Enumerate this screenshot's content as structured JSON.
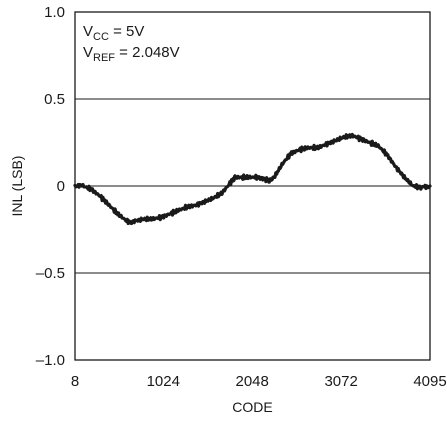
{
  "chart_data": {
    "type": "line",
    "xlabel": "CODE",
    "ylabel": "INL (LSB)",
    "xlim": [
      8,
      4095
    ],
    "ylim": [
      -1.0,
      1.0
    ],
    "x_ticks": [
      8,
      1024,
      2048,
      3072,
      4095
    ],
    "x_tick_labels": [
      "8",
      "1024",
      "2048",
      "3072",
      "4095"
    ],
    "y_ticks": [
      1.0,
      0.5,
      0,
      -0.5,
      -1.0
    ],
    "y_tick_labels": [
      "1.0",
      "0.5",
      "0",
      "–0.5",
      "–1.0"
    ],
    "grid": "horizontal",
    "line_color": "#1a1a1a",
    "annotations": [
      {
        "main": "V",
        "sub": "CC",
        "rest": " = 5V"
      },
      {
        "main": "V",
        "sub": "REF",
        "rest": " = 2.048V"
      }
    ],
    "series": [
      {
        "x": [
          8,
          100,
          200,
          300,
          400,
          500,
          600,
          650,
          700,
          800,
          900,
          1000,
          1100,
          1200,
          1300,
          1400,
          1500,
          1600,
          1700,
          1800,
          1850,
          1900,
          2000,
          2100,
          2200,
          2250,
          2300,
          2400,
          2500,
          2600,
          2700,
          2800,
          2900,
          3000,
          3100,
          3200,
          3300,
          3400,
          3500,
          3600,
          3700,
          3800,
          3900,
          4000,
          4095
        ],
        "y": [
          0.0,
          0.0,
          -0.02,
          -0.06,
          -0.11,
          -0.16,
          -0.2,
          -0.21,
          -0.2,
          -0.19,
          -0.19,
          -0.18,
          -0.16,
          -0.14,
          -0.12,
          -0.11,
          -0.09,
          -0.07,
          -0.04,
          0.02,
          0.05,
          0.05,
          0.05,
          0.05,
          0.04,
          0.03,
          0.05,
          0.13,
          0.19,
          0.21,
          0.22,
          0.22,
          0.24,
          0.26,
          0.28,
          0.29,
          0.27,
          0.25,
          0.23,
          0.18,
          0.11,
          0.05,
          0.0,
          -0.01,
          0.0
        ]
      }
    ]
  }
}
